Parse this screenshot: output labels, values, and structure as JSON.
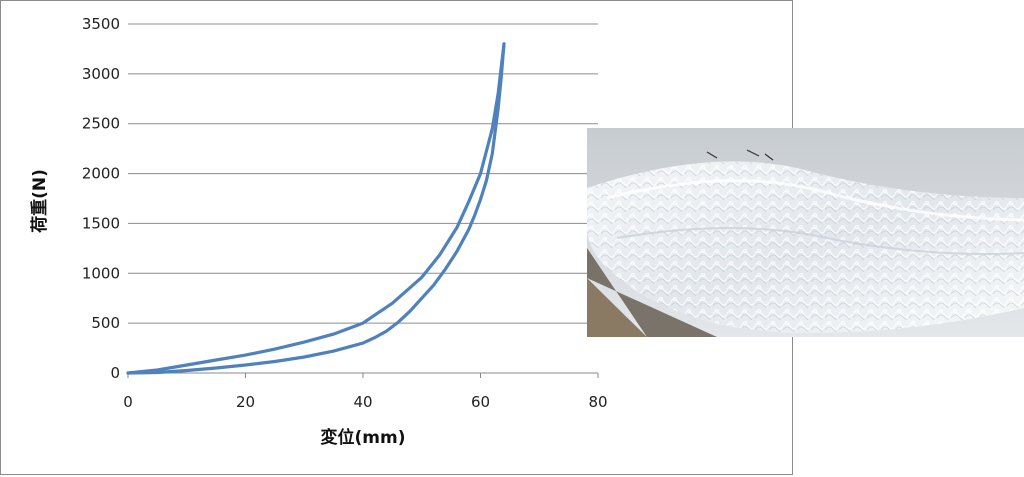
{
  "chart_data": {
    "type": "line",
    "xlabel": "変位(mm)",
    "ylabel": "荷重(N)",
    "xlim": [
      0,
      80
    ],
    "ylim": [
      0,
      3500
    ],
    "xticks": [
      0,
      20,
      40,
      60,
      80
    ],
    "yticks": [
      0,
      500,
      1000,
      1500,
      2000,
      2500,
      3000,
      3500
    ],
    "grid": "horizontal",
    "series": [
      {
        "color": "#4F81BD",
        "x": [
          0,
          5,
          10,
          15,
          20,
          25,
          30,
          35,
          40,
          45,
          50,
          53,
          56,
          58,
          60,
          62,
          63,
          63.8,
          64
        ],
        "y": [
          0,
          30,
          80,
          130,
          180,
          240,
          310,
          390,
          500,
          700,
          960,
          1180,
          1460,
          1720,
          2000,
          2450,
          2800,
          3200,
          3300
        ]
      },
      {
        "color": "#4F81BD",
        "x": [
          64,
          63.5,
          63,
          62,
          61,
          60,
          59,
          58,
          56,
          54,
          52,
          50,
          48,
          46,
          44,
          42,
          40,
          35,
          30,
          25,
          20,
          15,
          10,
          5,
          0
        ],
        "y": [
          3300,
          2950,
          2650,
          2200,
          1930,
          1740,
          1580,
          1440,
          1220,
          1040,
          880,
          750,
          620,
          510,
          420,
          355,
          300,
          220,
          160,
          115,
          80,
          50,
          25,
          5,
          0
        ]
      }
    ]
  },
  "photo": {
    "icon": "foam-mesh-photo"
  }
}
